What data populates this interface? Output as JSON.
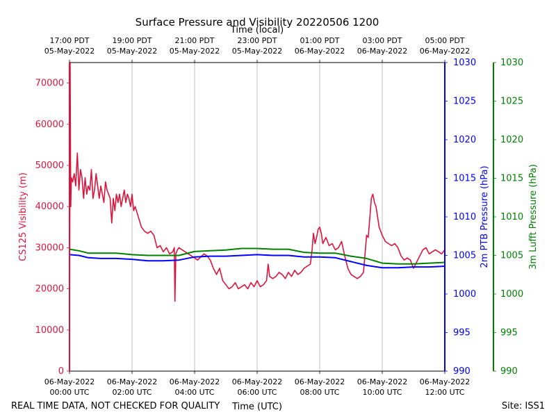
{
  "chart_data": {
    "type": "line",
    "title": "Surface Pressure and Visibility 20220506 1200",
    "top_axis_label": "Time (local)",
    "xlabel": "Time (UTC)",
    "x_units": "hours since 06-May-2022 00:00 UTC",
    "xlim": [
      0,
      12
    ],
    "x_ticks_utc": [
      {
        "x": 0,
        "line1": "06-May-2022",
        "line2": "00:00 UTC"
      },
      {
        "x": 2,
        "line1": "06-May-2022",
        "line2": "02:00 UTC"
      },
      {
        "x": 4,
        "line1": "06-May-2022",
        "line2": "04:00 UTC"
      },
      {
        "x": 6,
        "line1": "06-May-2022",
        "line2": "06:00 UTC"
      },
      {
        "x": 8,
        "line1": "06-May-2022",
        "line2": "08:00 UTC"
      },
      {
        "x": 10,
        "line1": "06-May-2022",
        "line2": "10:00 UTC"
      },
      {
        "x": 12,
        "line1": "06-May-2022",
        "line2": "12:00 UTC"
      }
    ],
    "x_ticks_local": [
      {
        "x": 0,
        "line1": "17:00 PDT",
        "line2": "05-May-2022"
      },
      {
        "x": 2,
        "line1": "19:00 PDT",
        "line2": "05-May-2022"
      },
      {
        "x": 4,
        "line1": "21:00 PDT",
        "line2": "05-May-2022"
      },
      {
        "x": 6,
        "line1": "23:00 PDT",
        "line2": "05-May-2022"
      },
      {
        "x": 8,
        "line1": "01:00 PDT",
        "line2": "06-May-2022"
      },
      {
        "x": 10,
        "line1": "03:00 PDT",
        "line2": "06-May-2022"
      },
      {
        "x": 12,
        "line1": "05:00 PDT",
        "line2": "06-May-2022"
      }
    ],
    "axes": [
      {
        "name": "visibility",
        "label": "CS125 Visibility (m)",
        "color": "#dc143c",
        "ylim": [
          0,
          75000
        ],
        "ticks": [
          0,
          10000,
          20000,
          30000,
          40000,
          50000,
          60000,
          70000
        ]
      },
      {
        "name": "ptb",
        "label": "2m PTB Pressure (hPa)",
        "color": "#0000ff",
        "ylim": [
          990,
          1030
        ],
        "ticks": [
          990,
          995,
          1000,
          1005,
          1010,
          1015,
          1020,
          1025,
          1030
        ]
      },
      {
        "name": "lufft",
        "label": "3m Lufft Pressure (hPa)",
        "color": "#008000",
        "ylim": [
          990,
          1030
        ],
        "ticks": [
          990,
          995,
          1000,
          1005,
          1010,
          1015,
          1020,
          1025,
          1030
        ]
      }
    ],
    "series": [
      {
        "name": "CS125 Visibility",
        "axis": "visibility",
        "color": "#dc143c",
        "x": [
          0,
          0.02,
          0.04,
          0.06,
          0.1,
          0.15,
          0.2,
          0.25,
          0.3,
          0.35,
          0.4,
          0.45,
          0.5,
          0.55,
          0.6,
          0.65,
          0.7,
          0.75,
          0.8,
          0.85,
          0.9,
          0.95,
          1.0,
          1.05,
          1.1,
          1.15,
          1.2,
          1.25,
          1.3,
          1.35,
          1.4,
          1.45,
          1.5,
          1.55,
          1.6,
          1.65,
          1.7,
          1.75,
          1.8,
          1.85,
          1.9,
          1.95,
          2.0,
          2.05,
          2.1,
          2.2,
          2.3,
          2.4,
          2.5,
          2.6,
          2.7,
          2.8,
          2.9,
          3.0,
          3.1,
          3.2,
          3.3,
          3.35,
          3.37,
          3.4,
          3.45,
          3.5,
          3.6,
          3.7,
          3.8,
          3.9,
          4.0,
          4.1,
          4.2,
          4.3,
          4.4,
          4.5,
          4.6,
          4.7,
          4.8,
          4.9,
          5.0,
          5.1,
          5.2,
          5.3,
          5.4,
          5.5,
          5.6,
          5.7,
          5.8,
          5.9,
          6.0,
          6.1,
          6.2,
          6.3,
          6.35,
          6.4,
          6.5,
          6.6,
          6.7,
          6.8,
          6.9,
          7.0,
          7.1,
          7.2,
          7.3,
          7.4,
          7.5,
          7.6,
          7.7,
          7.75,
          7.8,
          7.85,
          7.9,
          7.95,
          8.0,
          8.05,
          8.1,
          8.2,
          8.3,
          8.4,
          8.5,
          8.6,
          8.7,
          8.8,
          8.9,
          9.0,
          9.1,
          9.2,
          9.3,
          9.4,
          9.5,
          9.55,
          9.6,
          9.65,
          9.7,
          9.75,
          9.8,
          9.85,
          9.9,
          10.0,
          10.1,
          10.2,
          10.3,
          10.4,
          10.5,
          10.6,
          10.7,
          10.8,
          10.9,
          11.0,
          11.1,
          11.2,
          11.3,
          11.4,
          11.5,
          11.6,
          11.7,
          11.8,
          11.9,
          12.0
        ],
        "values": [
          0,
          75000,
          40000,
          47000,
          46000,
          48000,
          45000,
          53000,
          44000,
          49000,
          47000,
          42000,
          47000,
          43000,
          45000,
          44000,
          49000,
          42000,
          44000,
          48000,
          45000,
          42000,
          45000,
          43000,
          41000,
          46000,
          44000,
          43000,
          42000,
          36000,
          42000,
          39000,
          43000,
          41000,
          43000,
          40000,
          42000,
          44000,
          41000,
          43000,
          42000,
          40000,
          43000,
          39000,
          40000,
          37500,
          35000,
          34000,
          33500,
          34000,
          33000,
          30000,
          30500,
          29000,
          30000,
          28500,
          29000,
          30000,
          17000,
          28500,
          29500,
          30000,
          29500,
          29000,
          28500,
          28000,
          27500,
          27000,
          27800,
          28500,
          28000,
          27000,
          25000,
          23500,
          25000,
          22000,
          21000,
          20000,
          20500,
          21500,
          20000,
          20500,
          21000,
          20000,
          21500,
          20500,
          22000,
          20500,
          21000,
          22000,
          26000,
          23000,
          22500,
          23000,
          24000,
          23500,
          22500,
          24000,
          23000,
          24500,
          23500,
          24000,
          25000,
          25500,
          26000,
          29000,
          33500,
          31000,
          32500,
          34500,
          35000,
          33500,
          31000,
          32500,
          30500,
          31000,
          29500,
          30000,
          31500,
          28000,
          25000,
          23500,
          23000,
          22500,
          23000,
          24000,
          33000,
          32500,
          37000,
          42000,
          43000,
          41000,
          40000,
          37500,
          35000,
          33000,
          31500,
          31000,
          30500,
          31000,
          30000,
          28000,
          27000,
          27500,
          27000,
          25000,
          26500,
          28000,
          29500,
          30000,
          28500,
          29000,
          29500,
          29000,
          28500,
          29500
        ]
      },
      {
        "name": "2m PTB Pressure",
        "axis": "ptb",
        "color": "#0000ff",
        "x": [
          0,
          0.3,
          0.6,
          1.0,
          1.5,
          2.0,
          2.5,
          3.0,
          3.5,
          4.0,
          4.5,
          5.0,
          5.5,
          6.0,
          6.5,
          7.0,
          7.5,
          8.0,
          8.5,
          9.0,
          9.5,
          10.0,
          10.5,
          11.0,
          11.5,
          12.0
        ],
        "values": [
          1005.1,
          1005.0,
          1004.7,
          1004.6,
          1004.6,
          1004.5,
          1004.3,
          1004.3,
          1004.4,
          1004.8,
          1004.9,
          1004.9,
          1005.0,
          1005.1,
          1005.0,
          1005.0,
          1004.8,
          1004.8,
          1004.7,
          1004.2,
          1003.7,
          1003.4,
          1003.4,
          1003.5,
          1003.5,
          1003.6
        ]
      },
      {
        "name": "3m Lufft Pressure",
        "axis": "lufft",
        "color": "#008000",
        "x": [
          0,
          0.3,
          0.6,
          1.0,
          1.5,
          2.0,
          2.5,
          3.0,
          3.5,
          4.0,
          4.5,
          5.0,
          5.5,
          6.0,
          6.5,
          7.0,
          7.5,
          8.0,
          8.5,
          9.0,
          9.5,
          10.0,
          10.5,
          11.0,
          11.5,
          12.0
        ],
        "values": [
          1005.8,
          1005.6,
          1005.3,
          1005.3,
          1005.3,
          1005.1,
          1005.0,
          1005.0,
          1005.0,
          1005.5,
          1005.6,
          1005.7,
          1005.9,
          1005.9,
          1005.8,
          1005.8,
          1005.4,
          1005.3,
          1005.3,
          1004.9,
          1004.6,
          1004.0,
          1003.9,
          1003.9,
          1004.0,
          1004.1
        ]
      }
    ]
  },
  "footer": {
    "disclaimer": "REAL TIME DATA, NOT CHECKED FOR QUALITY",
    "site": "Site: ISS1"
  }
}
